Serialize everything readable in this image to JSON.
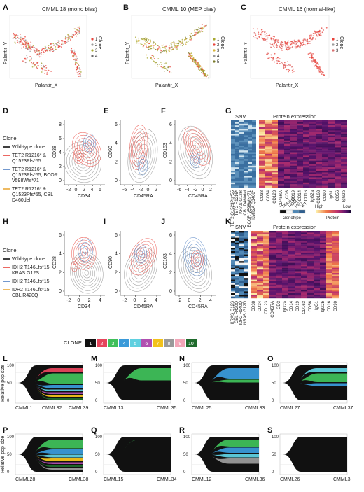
{
  "panels": {
    "A": {
      "letter": "A",
      "title": "CMML 18 (mono bias)",
      "xlabel": "Palantir_X",
      "ylabel": "Palantir_Y",
      "legend_title": "Clone",
      "legend": [
        "1",
        "2",
        "3",
        "4"
      ]
    },
    "B": {
      "letter": "B",
      "title": "CMML 10 (MEP bias)",
      "xlabel": "Palantir_X",
      "ylabel": "Palantir_Y",
      "legend_title": "Clone",
      "legend": [
        "1",
        "2",
        "3",
        "4",
        "5"
      ]
    },
    "C": {
      "letter": "C",
      "title": "CMML 16 (normal-like)",
      "xlabel": "Palantir_X",
      "ylabel": "Palantir_Y",
      "legend_title": "Clone",
      "legend": [
        "1",
        "2",
        "3"
      ]
    },
    "D": {
      "letter": "D",
      "xlabel": "CD34",
      "ylabel": "CD38",
      "xticks": [
        "-2",
        "0",
        "2",
        "4",
        "6"
      ],
      "yticks": [
        "0",
        "2",
        "4",
        "6",
        "8"
      ]
    },
    "E": {
      "letter": "E",
      "xlabel": "CD45RA",
      "ylabel": "CD90",
      "xticks": [
        "-6",
        "-4",
        "-2",
        "0",
        "2"
      ],
      "yticks": [
        "0",
        "2",
        "4",
        "6"
      ]
    },
    "F": {
      "letter": "F",
      "xlabel": "CD45RA",
      "ylabel": "CD163",
      "xticks": [
        "-6",
        "-4",
        "-2",
        "0",
        "2"
      ],
      "yticks": [
        "0",
        "2",
        "4",
        "6"
      ]
    },
    "G": {
      "letter": "G",
      "snv_title": "SNV",
      "protein_title": "Protein expression",
      "snv_cols": [
        "TET2 Q1523Pfs*55",
        "TET2 R1216*",
        "KRAS G12R",
        "CBL D460del",
        "BCOR V598Wfs*71",
        "KMT2A Q3460*"
      ],
      "protein_cols": [
        "CD38",
        "CD34",
        "CD123",
        "CD45RA",
        "CD3",
        "CD19",
        "CD14",
        "CD16",
        "IgG2a",
        "CD163",
        "CD90",
        "IgG1",
        "CD56",
        "IgG2b"
      ],
      "genotype_legend": [
        "Missing",
        "HOM",
        "HET",
        "WT"
      ],
      "genotype_label": "Genotype",
      "protein_high": "High",
      "protein_low": "Low",
      "protein_label": "Protein"
    },
    "H": {
      "letter": "H",
      "xlabel": "CD34",
      "ylabel": "CD38",
      "xticks": [
        "-2",
        "0",
        "2",
        "4"
      ],
      "yticks": [
        "0",
        "2",
        "4",
        "6"
      ]
    },
    "I": {
      "letter": "I",
      "xlabel": "CD45RA",
      "ylabel": "CD90",
      "xticks": [
        "-2",
        "0",
        "2",
        "4"
      ],
      "yticks": [
        "0",
        "2",
        "4",
        "6"
      ]
    },
    "J": {
      "letter": "J",
      "xlabel": "CD45RA",
      "ylabel": "CD163",
      "xticks": [
        "-2",
        "0",
        "2",
        "4"
      ],
      "yticks": [
        "0",
        "2",
        "4",
        "6"
      ]
    },
    "K": {
      "letter": "K",
      "snv_title": "SNV",
      "protein_title": "Protein expression",
      "snv_cols": [
        "KRAS G12S",
        "CBL R420Q",
        "IDH2 R140Q",
        "NRAS G12D"
      ],
      "protein_cols": [
        "CD38",
        "CD34",
        "CD123",
        "CD45RA",
        "CD3",
        "IgG2a",
        "CD14",
        "CD19",
        "CD163",
        "CD56",
        "IgG1",
        "IgG2b",
        "CD16",
        "CD90"
      ]
    }
  },
  "legend_D": {
    "title": "Clone",
    "items": [
      {
        "label": "Wild-type clone",
        "color": "#111111"
      },
      {
        "label": "TET2 R1216* & Q1523Pfs*55",
        "color": "#e8433b"
      },
      {
        "label": "TET2 R1216* & Q1523Pfs*55, BCOR V598Wfs*71",
        "color": "#4f7fc2"
      },
      {
        "label": "TET2 R1216* & Q1523Pfs*55, CBL D460del",
        "color": "#e9a83a"
      }
    ]
  },
  "legend_H": {
    "title": "Clone:",
    "items": [
      {
        "label": "Wild-type clone",
        "color": "#111111"
      },
      {
        "label": "IDH2 T146Lfs*15, KRAS G12S",
        "color": "#e8433b"
      },
      {
        "label": "IDH2 T146Lfs*15",
        "color": "#4f7fc2"
      },
      {
        "label": "IDH2 T146Lfs*15, CBL R420Q",
        "color": "#e9a83a"
      }
    ]
  },
  "clone_key": {
    "title": "CLONE",
    "items": [
      {
        "label": "1",
        "color": "#111111"
      },
      {
        "label": "2",
        "color": "#e5455c"
      },
      {
        "label": "3",
        "color": "#3fbf5a"
      },
      {
        "label": "4",
        "color": "#3a9ad9"
      },
      {
        "label": "5",
        "color": "#5fd0e0"
      },
      {
        "label": "6",
        "color": "#b04fb0"
      },
      {
        "label": "7",
        "color": "#f2c21b"
      },
      {
        "label": "8",
        "color": "#9a9a9a"
      },
      {
        "label": "9",
        "color": "#f3a6b8"
      },
      {
        "label": "10",
        "color": "#1f6b2c"
      }
    ]
  },
  "fish": {
    "ylabel": "Relative pop size",
    "yticks": [
      "0",
      "50",
      "100"
    ],
    "plots": [
      {
        "letter": "L",
        "samples": [
          "CMML1",
          "CMML32",
          "CMML39"
        ]
      },
      {
        "letter": "M",
        "samples": [
          "CMML13",
          "CMML35"
        ]
      },
      {
        "letter": "N",
        "samples": [
          "CMML25",
          "CMML33"
        ]
      },
      {
        "letter": "O",
        "samples": [
          "CMML27",
          "CMML37"
        ]
      },
      {
        "letter": "P",
        "samples": [
          "CMML28",
          "CMML38"
        ]
      },
      {
        "letter": "Q",
        "samples": [
          "CMML15",
          "CMML34"
        ]
      },
      {
        "letter": "R",
        "samples": [
          "CMML12",
          "CMML36"
        ]
      },
      {
        "letter": "S",
        "samples": [
          "CMML26",
          "CMML3"
        ]
      }
    ]
  },
  "colors": {
    "wt": "#111111",
    "red": "#e8433b",
    "blue": "#4f7fc2",
    "orange": "#e9a83a",
    "olive": "#a8a832",
    "grey": "#9a9a9a"
  }
}
